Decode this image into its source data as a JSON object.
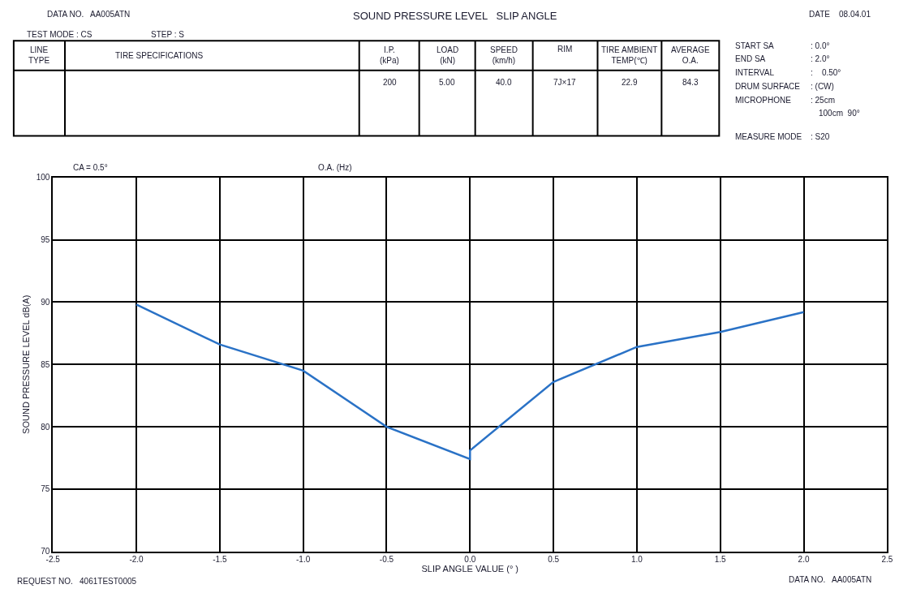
{
  "chart_data": {
    "type": "line",
    "title": "SOUND PRESSURE LEVEL   SLIP ANGLE",
    "xlabel": "SLIP ANGLE VALUE (° )",
    "ylabel": "SOUND PRESSURE LEVEL dB(A)",
    "x": [
      -2.0,
      -1.5,
      -1.0,
      -0.5,
      0.0,
      0.0,
      0.5,
      1.0,
      1.5,
      2.0
    ],
    "series": [
      {
        "color": "#2a72c6",
        "values": [
          89.8,
          86.6,
          84.5,
          80.0,
          77.4,
          78.1,
          83.6,
          86.4,
          87.6,
          89.2
        ]
      }
    ],
    "xlim": [
      -2.5,
      2.5
    ],
    "xticks": [
      {
        "value": -2.5,
        "label": "-2.5"
      },
      {
        "value": -2.0,
        "label": "-2.0"
      },
      {
        "value": -1.5,
        "label": "-1.5"
      },
      {
        "value": -1.0,
        "label": "-1.0"
      },
      {
        "value": -0.5,
        "label": "-0.5"
      },
      {
        "value": 0.0,
        "label": "0.0"
      },
      {
        "value": 0.5,
        "label": "0.5"
      },
      {
        "value": 1.0,
        "label": "1.0"
      },
      {
        "value": 1.5,
        "label": "1.5"
      },
      {
        "value": 2.0,
        "label": "2.0"
      },
      {
        "value": 2.5,
        "label": "2.5"
      }
    ],
    "ylim": [
      70,
      100
    ],
    "yticks": [
      70,
      75,
      80,
      85,
      90,
      95,
      100
    ],
    "grid": true,
    "marker": "none",
    "line_style": "solid",
    "annotations": [
      "DATA NO.   AA005ATN",
      "TEST MODE : CS",
      "STEP : S",
      "DATE    08.04.01",
      "LINE\nTYPE",
      "TIRE SPECIFICATIONS",
      "I.P.\n(kPa)",
      "LOAD\n(kN)",
      "SPEED\n(km/h)",
      "RIM",
      "TIRE AMBIENT\nTEMP(℃)",
      "AVERAGE\nO.A.",
      "200",
      "5.00",
      "40.0",
      "7J×17",
      "22.9",
      "84.3",
      "START SA",
      ": 0.0°",
      "END SA",
      ": 2.0°",
      "INTERVAL",
      ":    0.50°",
      "DRUM SURFACE",
      ": (CW)",
      "MICROPHONE",
      ": 25cm",
      "100cm  90°",
      "MEASURE MODE",
      ": S20",
      "CA = 0.5°",
      "O.A. (Hz)",
      "REQUEST NO.   4061TEST0005",
      "DATA NO.   AA005ATN"
    ]
  }
}
